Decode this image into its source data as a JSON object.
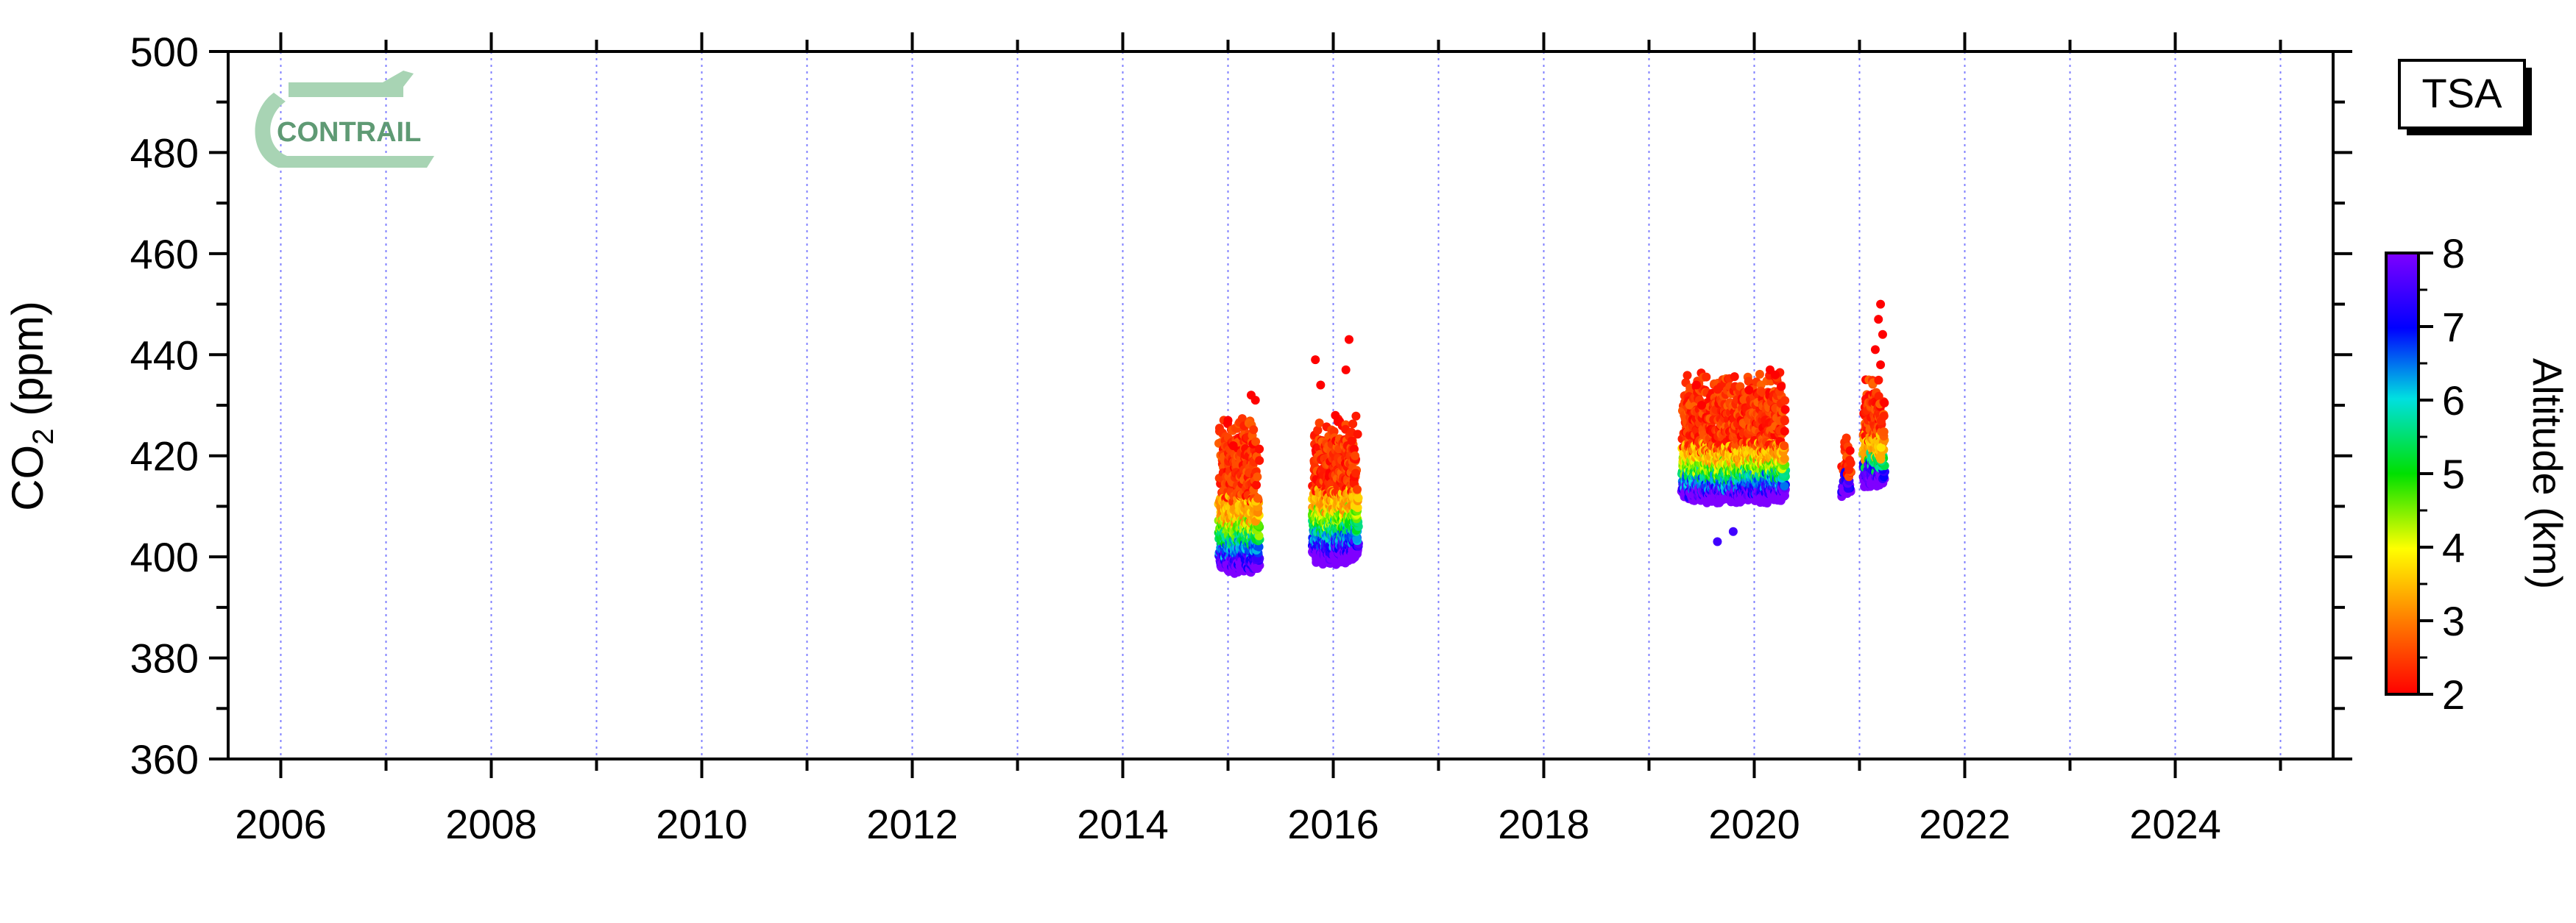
{
  "chart_data": {
    "type": "scatter",
    "station": "TSA",
    "logo_text": "CONTRAIL",
    "ylabel": {
      "main": "CO",
      "sub": "2",
      "unit": " (ppm)"
    },
    "ylim": [
      360,
      500
    ],
    "y_ticks": [
      360,
      380,
      400,
      420,
      440,
      460,
      480,
      500
    ],
    "xlim": [
      2005.5,
      2025.5
    ],
    "x_tick_labels": [
      "2006",
      "2008",
      "2010",
      "2012",
      "2014",
      "2016",
      "2018",
      "2020",
      "2022",
      "2024"
    ],
    "x_tick_values": [
      2006,
      2008,
      2010,
      2012,
      2014,
      2016,
      2018,
      2020,
      2022,
      2024
    ],
    "x_minor_years": [
      2007,
      2009,
      2011,
      2013,
      2015,
      2017,
      2019,
      2021,
      2023,
      2025
    ],
    "grid": "vertical-dotted",
    "colorbar": {
      "label": "Altitude (km)",
      "min": 2,
      "max": 8,
      "ticks": [
        2,
        3,
        4,
        5,
        6,
        7,
        8
      ],
      "colors": [
        "#ff0000",
        "#ff7f00",
        "#ffff00",
        "#00e000",
        "#00e0e0",
        "#0000ff",
        "#7f00ff"
      ]
    },
    "series": [
      {
        "clusters": [
          {
            "x_range": [
              2014.93,
              2015.28
            ],
            "co2_low": 398,
            "co2_high": 423,
            "alt_bands": [
              [
                8,
                398
              ],
              [
                7,
                399
              ],
              [
                6,
                401
              ],
              [
                5,
                403
              ],
              [
                4,
                405
              ],
              [
                3,
                407
              ],
              [
                2,
                412
              ]
            ]
          },
          {
            "x_range": [
              2015.82,
              2016.22
            ],
            "co2_low": 398,
            "co2_high": 422,
            "alt_bands": [
              [
                8,
                400
              ],
              [
                7,
                401
              ],
              [
                6,
                403
              ],
              [
                5,
                405
              ],
              [
                4,
                407
              ],
              [
                3,
                409
              ],
              [
                2,
                413
              ]
            ]
          },
          {
            "x_range": [
              2019.33,
              2020.28
            ],
            "co2_low": 406,
            "co2_high": 431,
            "alt_bands": [
              [
                8,
                412
              ],
              [
                7,
                413
              ],
              [
                6,
                414
              ],
              [
                5,
                416
              ],
              [
                4,
                417
              ],
              [
                3,
                419
              ],
              [
                2,
                422
              ]
            ]
          },
          {
            "x_range": [
              2020.85,
              2020.9
            ],
            "co2_low": 412,
            "co2_high": 417,
            "alt_bands": [
              [
                8,
                413
              ],
              [
                7,
                414
              ],
              [
                2,
                416
              ]
            ]
          },
          {
            "x_range": [
              2021.05,
              2021.22
            ],
            "co2_low": 414,
            "co2_high": 430,
            "alt_bands": [
              [
                8,
                415
              ],
              [
                7,
                416
              ],
              [
                5,
                418
              ],
              [
                3,
                420
              ],
              [
                2,
                424
              ]
            ]
          }
        ]
      }
    ],
    "outliers": [
      {
        "x": 2015.0,
        "y": 427
      },
      {
        "x": 2015.05,
        "y": 422
      },
      {
        "x": 2015.22,
        "y": 432
      },
      {
        "x": 2015.26,
        "y": 431
      },
      {
        "x": 2015.83,
        "y": 439
      },
      {
        "x": 2015.88,
        "y": 434
      },
      {
        "x": 2016.02,
        "y": 428
      },
      {
        "x": 2016.15,
        "y": 443
      },
      {
        "x": 2016.12,
        "y": 437
      },
      {
        "x": 2019.45,
        "y": 434
      },
      {
        "x": 2019.5,
        "y": 430
      },
      {
        "x": 2019.95,
        "y": 433
      },
      {
        "x": 2020.15,
        "y": 437
      },
      {
        "x": 2020.2,
        "y": 436
      },
      {
        "x": 2021.2,
        "y": 450
      },
      {
        "x": 2021.18,
        "y": 447
      },
      {
        "x": 2021.22,
        "y": 444
      },
      {
        "x": 2021.15,
        "y": 441
      },
      {
        "x": 2021.2,
        "y": 438
      },
      {
        "x": 2019.65,
        "y": 403
      },
      {
        "x": 2019.8,
        "y": 405
      }
    ]
  }
}
